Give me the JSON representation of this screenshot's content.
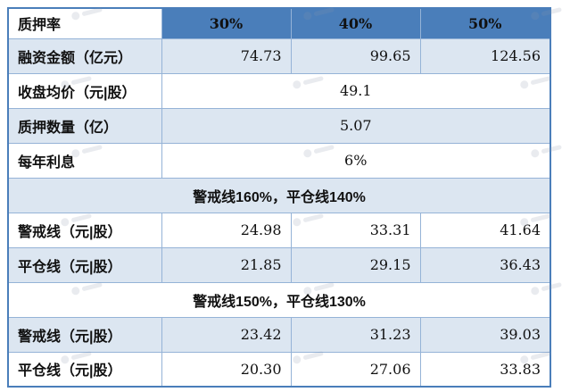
{
  "chart_data": {
    "type": "table",
    "corner_label": "质押率",
    "column_headers": [
      "30%",
      "40%",
      "50%"
    ],
    "financing_row": {
      "label": "融资金额（亿元）",
      "values": [
        "74.73",
        "99.65",
        "124.56"
      ]
    },
    "merged_rows": [
      {
        "label": "收盘均价（元|股）",
        "value": "49.1"
      },
      {
        "label": "质押数量（亿）",
        "value": "5.07"
      },
      {
        "label": "每年利息",
        "value": "6%"
      }
    ],
    "sections": [
      {
        "title": "警戒线160%，平仓线140%",
        "rows": [
          {
            "label": "警戒线（元|股）",
            "values": [
              "24.98",
              "33.31",
              "41.64"
            ]
          },
          {
            "label": "平仓线（元|股）",
            "values": [
              "21.85",
              "29.15",
              "36.43"
            ]
          }
        ]
      },
      {
        "title": "警戒线150%，平仓线130%",
        "rows": [
          {
            "label": "警戒线（元|股）",
            "values": [
              "23.42",
              "31.23",
              "39.03"
            ]
          },
          {
            "label": "平仓线（元|股）",
            "values": [
              "20.30",
              "27.06",
              "33.83"
            ]
          }
        ]
      }
    ]
  },
  "colors": {
    "header_blue": "#4a7eba",
    "shaded_row": "#dce6f1",
    "outer_border": "#4a7eba",
    "inner_border": "#95b3d7",
    "label_text": "#1f3864",
    "value_text": "#111111",
    "header_text": "#ffffff",
    "watermark": "#8a97ad"
  }
}
